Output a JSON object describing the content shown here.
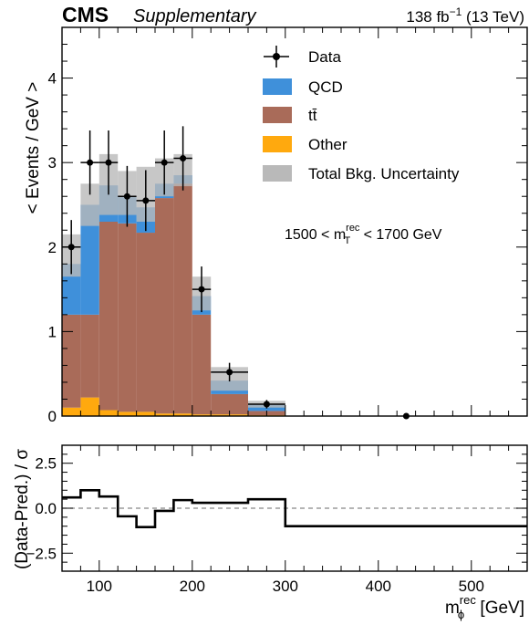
{
  "header": {
    "experiment": "CMS",
    "tag": "Supplementary",
    "lumi": "138 fb",
    "lumi_exp": "−1",
    "energy": "(13 TeV)"
  },
  "annotation": {
    "prefix": "1500 < m",
    "sup": "rec",
    "sub": "T",
    "suffix": " < 1700 GeV"
  },
  "colors": {
    "qcd": "#3f90da",
    "qcd_dark": "#2e6fb3",
    "ttbar": "#a96b59",
    "other": "#ffa90e",
    "unc": "#b9b9b9",
    "data": "#000000",
    "ref_line": "#888888"
  },
  "chart_data": [
    {
      "type": "bar",
      "stacked": true,
      "ylabel": "< Events / GeV >",
      "xlim": [
        60,
        560
      ],
      "ylim": [
        0,
        4.6
      ],
      "yticks": [
        0,
        1,
        2,
        3,
        4
      ],
      "xticks": [
        100,
        200,
        300,
        400,
        500
      ],
      "bin_edges": [
        60,
        80,
        100,
        120,
        140,
        160,
        180,
        200,
        220,
        260,
        300
      ],
      "series": [
        {
          "name": "Other",
          "values": [
            0.1,
            0.22,
            0.07,
            0.05,
            0.05,
            0.03,
            0.03,
            0.02,
            0.02,
            0.01
          ]
        },
        {
          "name": "tt̄",
          "values": [
            1.1,
            0.98,
            2.23,
            2.23,
            2.12,
            2.55,
            2.72,
            1.18,
            0.24,
            0.05
          ]
        },
        {
          "name": "QCD",
          "values": [
            0.6,
            1.3,
            0.43,
            0.32,
            0.3,
            0.17,
            0.1,
            0.22,
            0.16,
            0.08
          ]
        }
      ],
      "total_uncertainty": {
        "name": "Total Bkg. Uncertainty",
        "down": [
          1.65,
          2.25,
          2.38,
          2.38,
          2.3,
          2.6,
          2.72,
          1.25,
          0.3,
          0.1
        ],
        "up": [
          2.15,
          2.75,
          3.1,
          2.9,
          2.95,
          3.05,
          3.1,
          1.65,
          0.58,
          0.18
        ]
      },
      "data": {
        "name": "Data",
        "x": [
          70,
          90,
          110,
          130,
          150,
          170,
          190,
          210,
          240,
          280,
          430
        ],
        "y": [
          2.0,
          3.0,
          3.0,
          2.6,
          2.55,
          3.0,
          3.05,
          1.5,
          0.52,
          0.14,
          0.0
        ],
        "yerr": [
          0.32,
          0.38,
          0.38,
          0.36,
          0.36,
          0.38,
          0.38,
          0.27,
          0.11,
          0.05,
          0.0
        ],
        "xerr": [
          10,
          10,
          10,
          10,
          10,
          10,
          10,
          10,
          20,
          20,
          0
        ]
      },
      "legend": [
        "Data",
        "QCD",
        "tt̄",
        "Other",
        "Total Bkg. Uncertainty"
      ],
      "legend_position": "top-right"
    },
    {
      "type": "line",
      "step": true,
      "ylabel": "(Data-Pred.) / σ",
      "xlabel": "m",
      "xlabel_sup": "rec",
      "xlabel_sub": "ϕ",
      "xlabel_unit": " [GeV]",
      "xlim": [
        60,
        560
      ],
      "ylim": [
        -3.5,
        3.5
      ],
      "yticks": [
        -2.5,
        0.0,
        2.5
      ],
      "ytick_labels": [
        "−2.5",
        "0.0",
        "2.5"
      ],
      "xticks": [
        100,
        200,
        300,
        400,
        500
      ],
      "bin_edges": [
        60,
        80,
        100,
        120,
        140,
        160,
        180,
        200,
        220,
        260,
        300,
        560
      ],
      "values": [
        0.6,
        1.0,
        0.65,
        -0.45,
        -1.05,
        -0.15,
        0.45,
        0.3,
        0.3,
        0.5,
        -1.0
      ],
      "reference_line": 0
    }
  ]
}
